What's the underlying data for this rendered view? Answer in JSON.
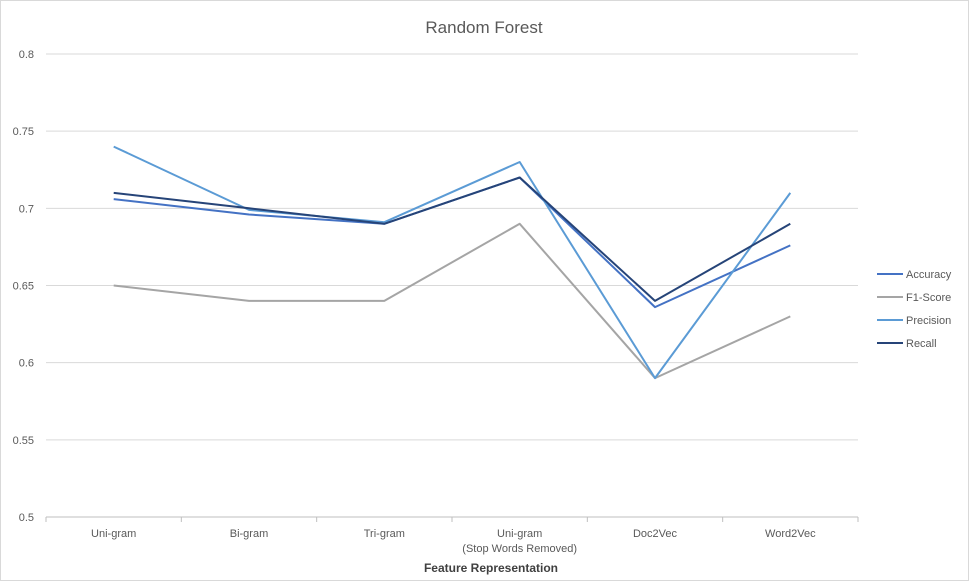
{
  "chart_data": {
    "type": "line",
    "title": "Random Forest",
    "xlabel": "Feature Representation",
    "ylabel": "",
    "categories": [
      [
        "Uni-gram"
      ],
      [
        "Bi-gram"
      ],
      [
        "Tri-gram"
      ],
      [
        "Uni-gram",
        "(Stop Words Removed)"
      ],
      [
        "Doc2Vec"
      ],
      [
        "Word2Vec"
      ]
    ],
    "ylim": [
      0.5,
      0.8
    ],
    "yticks": [
      "0.5",
      "0.55",
      "0.6",
      "0.65",
      "0.7",
      "0.75",
      "0.8"
    ],
    "grid": true,
    "legend_position": "right",
    "series": [
      {
        "name": "Accuracy",
        "color": "#4472c4",
        "values": [
          0.706,
          0.696,
          0.69,
          0.72,
          0.636,
          0.676
        ]
      },
      {
        "name": "F1-Score",
        "color": "#a5a5a5",
        "values": [
          0.65,
          0.64,
          0.64,
          0.69,
          0.59,
          0.63
        ]
      },
      {
        "name": "Precision",
        "color": "#5b9bd5",
        "values": [
          0.74,
          0.699,
          0.691,
          0.73,
          0.59,
          0.71
        ]
      },
      {
        "name": "Recall",
        "color": "#264478",
        "values": [
          0.71,
          0.7,
          0.69,
          0.72,
          0.64,
          0.69
        ]
      }
    ]
  }
}
